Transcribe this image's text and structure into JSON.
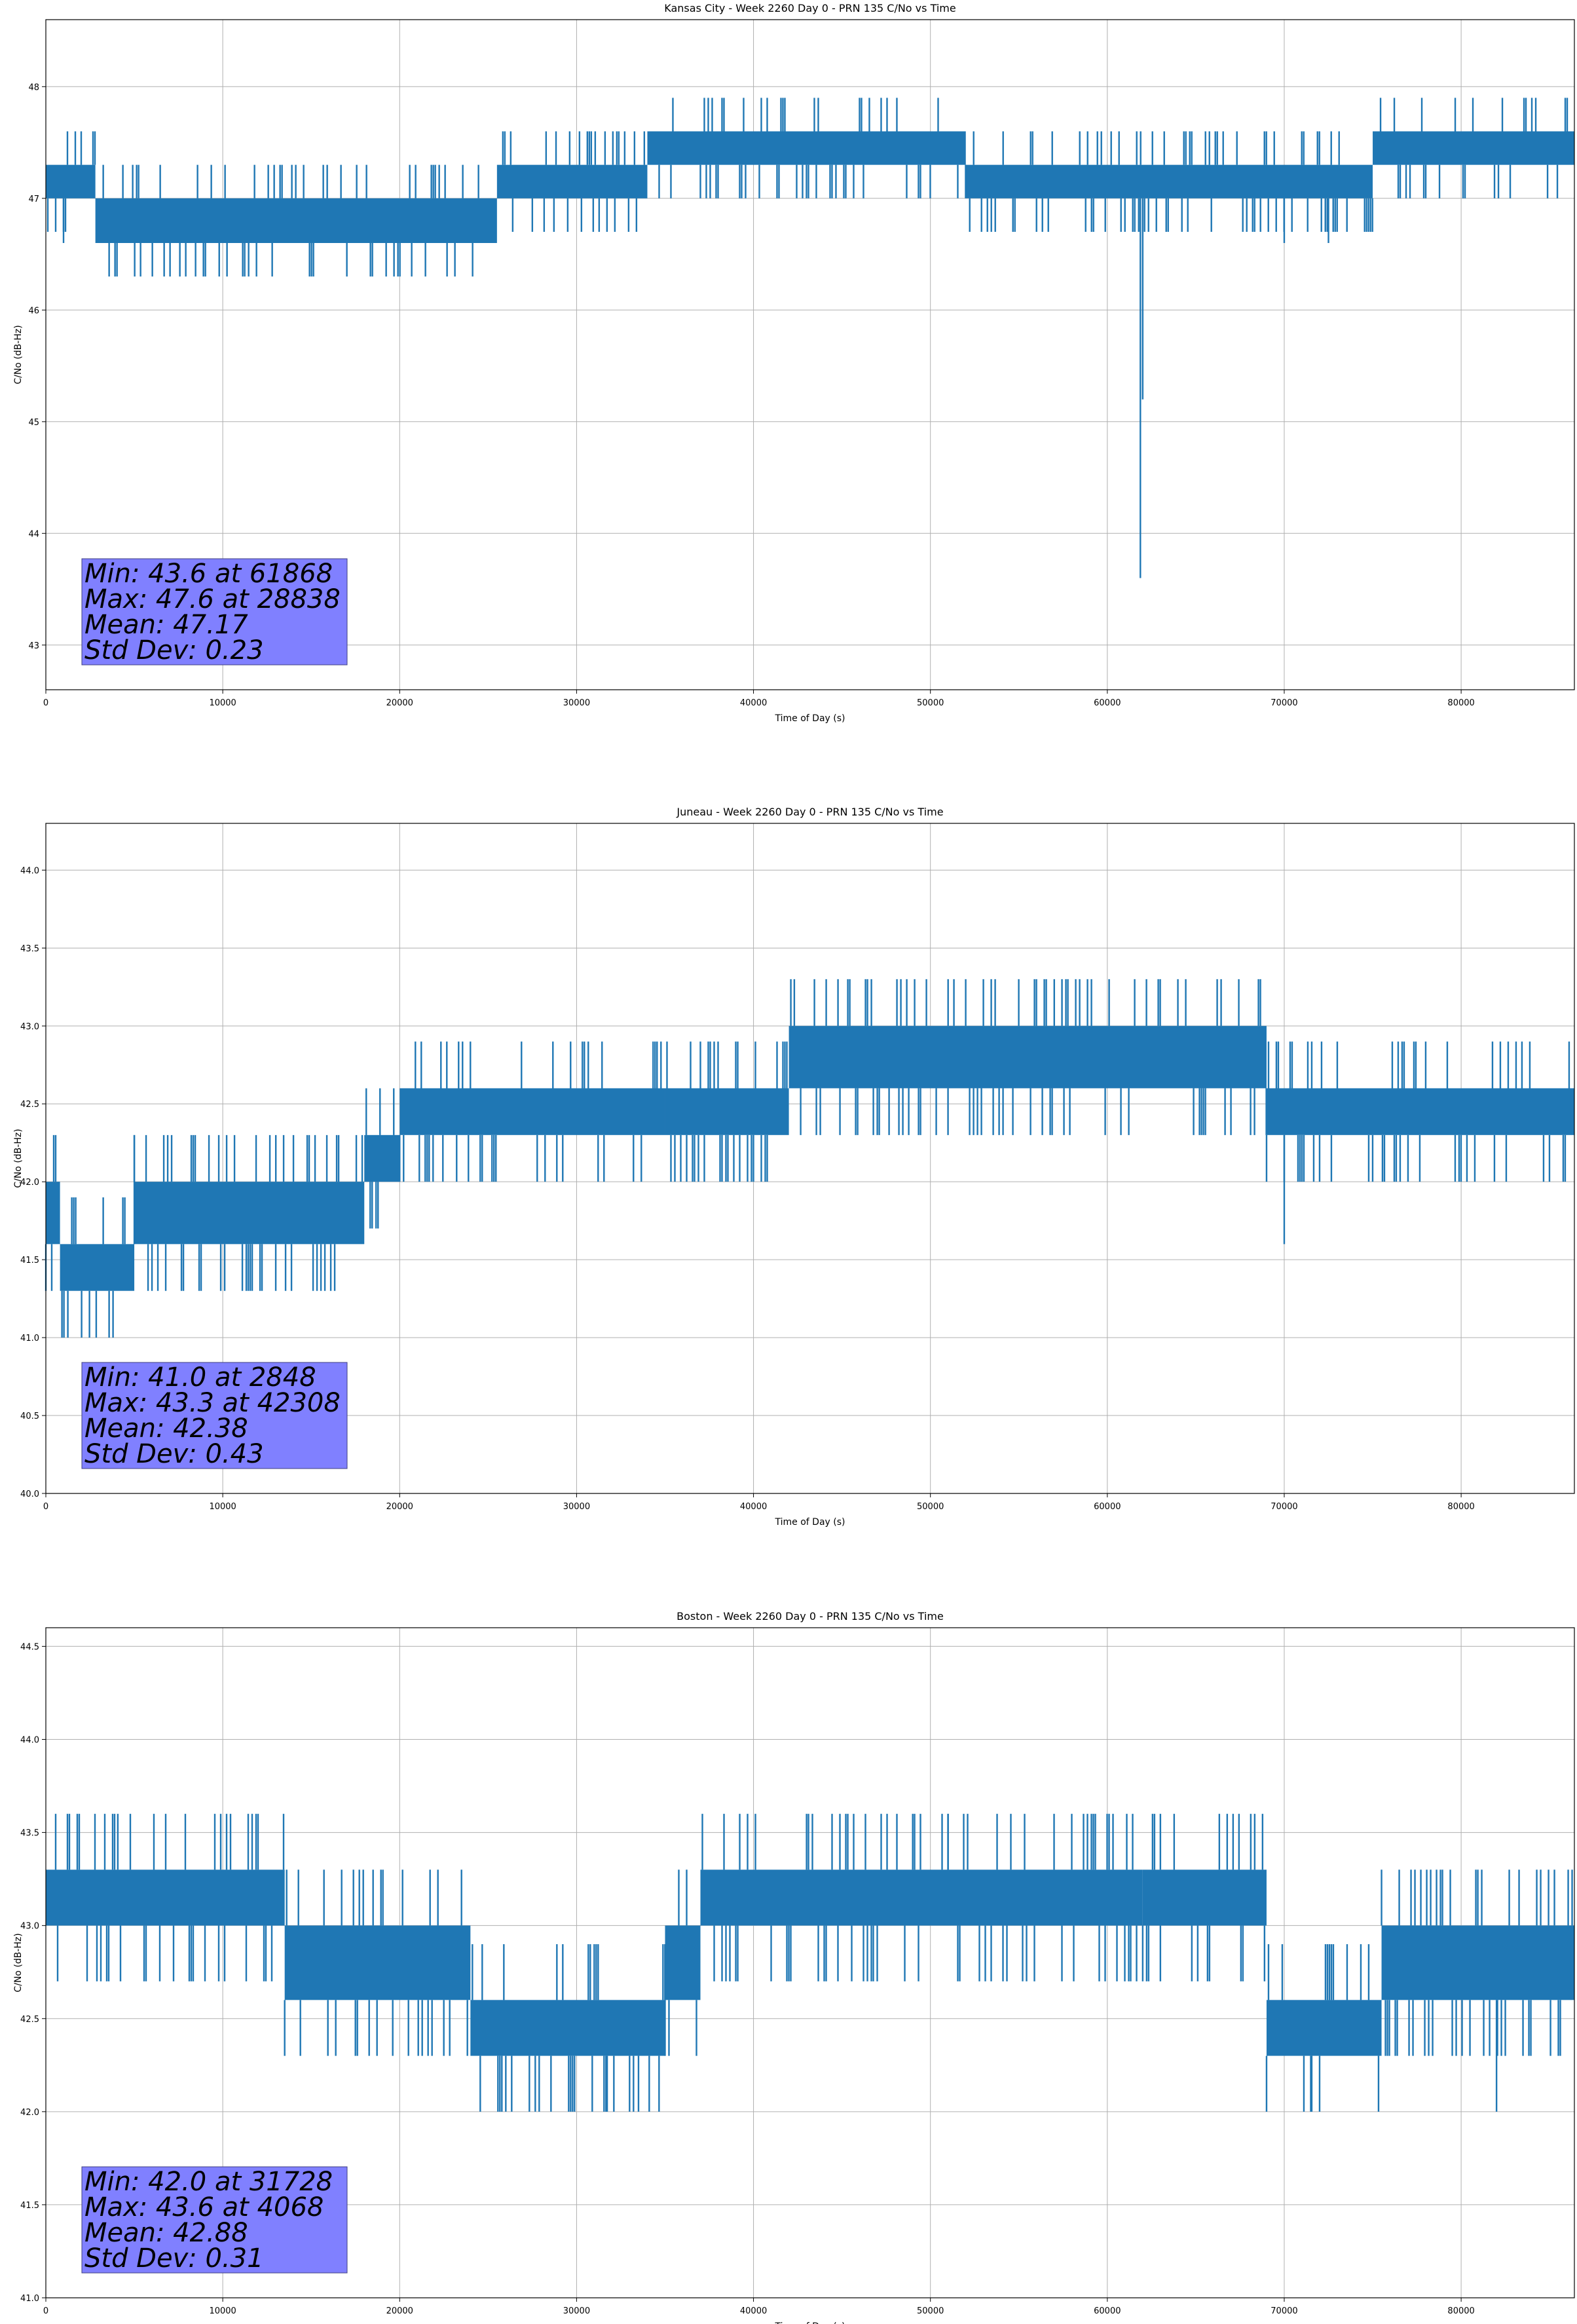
{
  "colors": {
    "series": "#1f77b4",
    "stats_box": "#8080ff",
    "grid": "#b0b0b0"
  },
  "chart_data": [
    {
      "type": "line",
      "title": "Kansas City - Week 2260 Day 0 - PRN 135 C/No vs Time",
      "xlabel": "Time of Day (s)",
      "ylabel": "C/No (dB-Hz)",
      "xlim": [
        0,
        86400
      ],
      "ylim": [
        42.6,
        48.6
      ],
      "xticks": [
        0,
        10000,
        20000,
        30000,
        40000,
        50000,
        60000,
        70000,
        80000
      ],
      "xtick_labels": [
        "0",
        "10000",
        "20000",
        "30000",
        "40000",
        "50000",
        "60000",
        "70000",
        "80000"
      ],
      "yticks": [
        43,
        44,
        45,
        46,
        47,
        48
      ],
      "ytick_labels": [
        "43",
        "44",
        "45",
        "46",
        "47",
        "48"
      ],
      "grid": true,
      "series": [
        {
          "bands": [
            {
              "x": [
                0,
                2800
              ],
              "y": [
                47.0,
                47.3
              ]
            },
            {
              "x": [
                2800,
                25500
              ],
              "y": [
                46.6,
                47.0
              ]
            },
            {
              "x": [
                25500,
                34000
              ],
              "y": [
                47.0,
                47.3
              ]
            },
            {
              "x": [
                34000,
                52000
              ],
              "y": [
                47.3,
                47.6
              ]
            },
            {
              "x": [
                52000,
                75000
              ],
              "y": [
                47.0,
                47.3
              ]
            },
            {
              "x": [
                75000,
                86400
              ],
              "y": [
                47.3,
                47.6
              ]
            }
          ],
          "spikes": [
            {
              "x": 9800,
              "y": 46.3
            },
            {
              "x": 28838,
              "y": 47.6
            },
            {
              "x": 61868,
              "y": 43.6
            },
            {
              "x": 62000,
              "y": 45.2
            },
            {
              "x": 70000,
              "y": 46.6
            },
            {
              "x": 72500,
              "y": 46.6
            },
            {
              "x": 1000,
              "y": 46.6
            }
          ]
        }
      ],
      "stats": {
        "line1": "Min: 43.6 at 61868",
        "line2": "Max: 47.6 at 28838",
        "line3": "Mean: 47.17",
        "line4": "Std Dev: 0.23"
      }
    },
    {
      "type": "line",
      "title": "Juneau - Week 2260 Day 0 - PRN 135 C/No vs Time",
      "xlabel": "Time of Day (s)",
      "ylabel": "C/No (dB-Hz)",
      "xlim": [
        0,
        86400
      ],
      "ylim": [
        40.0,
        44.3
      ],
      "xticks": [
        0,
        10000,
        20000,
        30000,
        40000,
        50000,
        60000,
        70000,
        80000
      ],
      "xtick_labels": [
        "0",
        "10000",
        "20000",
        "30000",
        "40000",
        "50000",
        "60000",
        "70000",
        "80000"
      ],
      "yticks": [
        40.0,
        40.5,
        41.0,
        41.5,
        42.0,
        42.5,
        43.0,
        43.5,
        44.0
      ],
      "ytick_labels": [
        "40.0",
        "40.5",
        "41.0",
        "41.5",
        "42.0",
        "42.5",
        "43.0",
        "43.5",
        "44.0"
      ],
      "grid": true,
      "series": [
        {
          "bands": [
            {
              "x": [
                0,
                800
              ],
              "y": [
                41.6,
                42.0
              ]
            },
            {
              "x": [
                800,
                5000
              ],
              "y": [
                41.3,
                41.6
              ]
            },
            {
              "x": [
                5000,
                18000
              ],
              "y": [
                41.6,
                42.0
              ]
            },
            {
              "x": [
                18000,
                20000
              ],
              "y": [
                42.0,
                42.3
              ]
            },
            {
              "x": [
                20000,
                35000
              ],
              "y": [
                42.3,
                42.6
              ]
            },
            {
              "x": [
                35000,
                42000
              ],
              "y": [
                42.3,
                42.6
              ]
            },
            {
              "x": [
                42000,
                69000
              ],
              "y": [
                42.6,
                43.0
              ]
            },
            {
              "x": [
                69000,
                86400
              ],
              "y": [
                42.3,
                42.6
              ]
            }
          ],
          "spikes": [
            {
              "x": 2848,
              "y": 41.0
            },
            {
              "x": 42308,
              "y": 43.3
            },
            {
              "x": 51000,
              "y": 43.3
            },
            {
              "x": 57000,
              "y": 43.3
            },
            {
              "x": 70000,
              "y": 41.6
            },
            {
              "x": 5000,
              "y": 42.3
            },
            {
              "x": 13000,
              "y": 42.3
            }
          ]
        }
      ],
      "stats": {
        "line1": "Min: 41.0 at 2848",
        "line2": "Max: 43.3 at 42308",
        "line3": "Mean: 42.38",
        "line4": "Std Dev: 0.43"
      }
    },
    {
      "type": "line",
      "title": "Boston - Week 2260 Day 0 - PRN 135 C/No vs Time",
      "xlabel": "Time of Day (s)",
      "ylabel": "C/No (dB-Hz)",
      "xlim": [
        0,
        86400
      ],
      "ylim": [
        41.0,
        44.6
      ],
      "xticks": [
        0,
        10000,
        20000,
        30000,
        40000,
        50000,
        60000,
        70000,
        80000
      ],
      "xtick_labels": [
        "0",
        "10000",
        "20000",
        "30000",
        "40000",
        "50000",
        "60000",
        "70000",
        "80000"
      ],
      "yticks": [
        41.0,
        41.5,
        42.0,
        42.5,
        43.0,
        43.5,
        44.0,
        44.5
      ],
      "ytick_labels": [
        "41.0",
        "41.5",
        "42.0",
        "42.5",
        "43.0",
        "43.5",
        "44.0",
        "44.5"
      ],
      "grid": true,
      "series": [
        {
          "bands": [
            {
              "x": [
                0,
                13500
              ],
              "y": [
                43.0,
                43.3
              ]
            },
            {
              "x": [
                13500,
                24000
              ],
              "y": [
                42.6,
                43.0
              ]
            },
            {
              "x": [
                24000,
                35000
              ],
              "y": [
                42.3,
                42.6
              ]
            },
            {
              "x": [
                35000,
                37000
              ],
              "y": [
                42.6,
                43.0
              ]
            },
            {
              "x": [
                37000,
                62000
              ],
              "y": [
                43.0,
                43.3
              ]
            },
            {
              "x": [
                62000,
                69000
              ],
              "y": [
                43.0,
                43.3
              ]
            },
            {
              "x": [
                69000,
                75500
              ],
              "y": [
                42.3,
                42.6
              ]
            },
            {
              "x": [
                75500,
                86400
              ],
              "y": [
                42.6,
                43.0
              ]
            }
          ],
          "spikes": [
            {
              "x": 4068,
              "y": 43.6
            },
            {
              "x": 31728,
              "y": 42.0
            },
            {
              "x": 33500,
              "y": 42.0
            },
            {
              "x": 43000,
              "y": 43.6
            },
            {
              "x": 49000,
              "y": 43.6
            },
            {
              "x": 51000,
              "y": 43.6
            },
            {
              "x": 63000,
              "y": 43.6
            },
            {
              "x": 71500,
              "y": 42.0
            },
            {
              "x": 82000,
              "y": 42.0
            }
          ]
        }
      ],
      "stats": {
        "line1": "Min: 42.0 at 31728",
        "line2": "Max: 43.6 at 4068",
        "line3": "Mean: 42.88",
        "line4": "Std Dev: 0.31"
      }
    }
  ]
}
